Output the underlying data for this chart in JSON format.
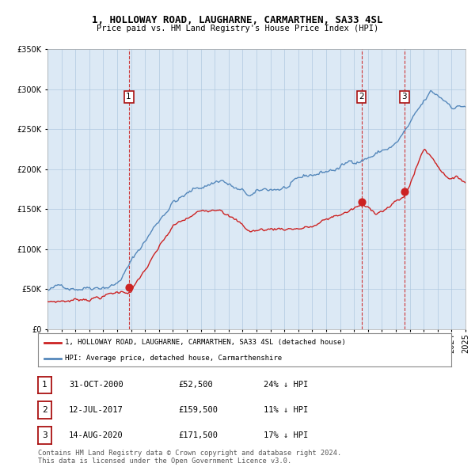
{
  "title": "1, HOLLOWAY ROAD, LAUGHARNE, CARMARTHEN, SA33 4SL",
  "subtitle": "Price paid vs. HM Land Registry's House Price Index (HPI)",
  "ylim": [
    0,
    350000
  ],
  "yticks": [
    0,
    50000,
    100000,
    150000,
    200000,
    250000,
    300000,
    350000
  ],
  "background_color": "#ffffff",
  "chart_bg_color": "#dce9f5",
  "grid_color": "#b0c8e0",
  "hpi_color": "#5588bb",
  "price_color": "#cc2222",
  "vline_color": "#cc2222",
  "sale_points": [
    {
      "date_num": 2000.83,
      "price": 52500,
      "label": "1"
    },
    {
      "date_num": 2017.53,
      "price": 159500,
      "label": "2"
    },
    {
      "date_num": 2020.62,
      "price": 171500,
      "label": "3"
    }
  ],
  "legend_price_label": "1, HOLLOWAY ROAD, LAUGHARNE, CARMARTHEN, SA33 4SL (detached house)",
  "legend_hpi_label": "HPI: Average price, detached house, Carmarthenshire",
  "table_rows": [
    {
      "num": "1",
      "date": "31-OCT-2000",
      "price": "£52,500",
      "hpi": "24% ↓ HPI"
    },
    {
      "num": "2",
      "date": "12-JUL-2017",
      "price": "£159,500",
      "hpi": "11% ↓ HPI"
    },
    {
      "num": "3",
      "date": "14-AUG-2020",
      "price": "£171,500",
      "hpi": "17% ↓ HPI"
    }
  ],
  "footer": "Contains HM Land Registry data © Crown copyright and database right 2024.\nThis data is licensed under the Open Government Licence v3.0.",
  "xlim_start": 1995.0,
  "xlim_end": 2025.0
}
